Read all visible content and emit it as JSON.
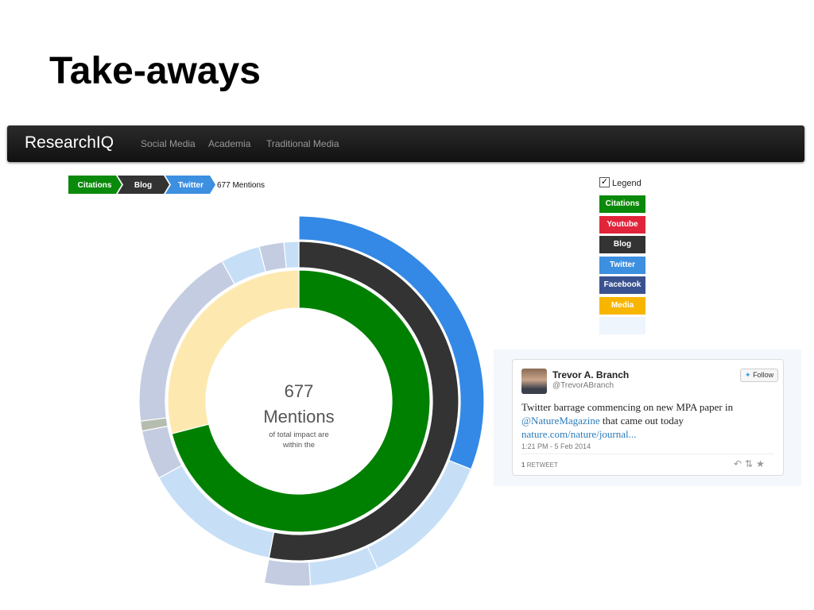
{
  "slide": {
    "title": "Take-aways"
  },
  "navbar": {
    "brand": "ResearchIQ",
    "items": [
      "Social Media",
      "Academia",
      "Traditional Media"
    ]
  },
  "breadcrumb": {
    "steps": [
      "Citations",
      "Blog",
      "Twitter"
    ],
    "current": "677 Mentions"
  },
  "legend": {
    "label": "Legend",
    "items": [
      {
        "label": "Citations",
        "color": "#0a8a0a"
      },
      {
        "label": "Youtube",
        "color": "#e0253a"
      },
      {
        "label": "Blog",
        "color": "#333333"
      },
      {
        "label": "Twitter",
        "color": "#3d8fe0"
      },
      {
        "label": "Facebook",
        "color": "#3b5290"
      },
      {
        "label": "Media",
        "color": "#f7b500"
      }
    ]
  },
  "center": {
    "count": "677",
    "unit": "Mentions",
    "line1": "of total impact are",
    "line2": "within the"
  },
  "tweet": {
    "name": "Trevor A. Branch",
    "handle": "@TrevorABranch",
    "follow": "Follow",
    "text1": "Twitter barrage commencing on new MPA paper in",
    "mention": "@NatureMagazine",
    "text2": "that came out today",
    "link": "nature.com/nature/journal...",
    "time": "1:21 PM - 5 Feb 2014",
    "retweets": "1",
    "retweet_label": "RETWEET"
  },
  "chart_data": {
    "type": "sunburst",
    "rings": [
      {
        "values": [
          71,
          29
        ],
        "colors": [
          "#008000",
          "#fde9b0"
        ]
      },
      {
        "values": [
          53,
          14,
          5,
          1,
          19,
          4,
          2.5,
          1.5
        ],
        "colors": [
          "#333333",
          "#c6dff7",
          "#c3cce0",
          "#b5bdb0",
          "#c3cce0",
          "#c6dff7",
          "#c3cce0",
          "#c6dff7"
        ]
      },
      {
        "values": [
          31,
          12,
          6,
          4
        ],
        "colors": [
          "#3389e5",
          "#c6dff7",
          "#c6dff7",
          "#c3cce0"
        ]
      }
    ]
  }
}
